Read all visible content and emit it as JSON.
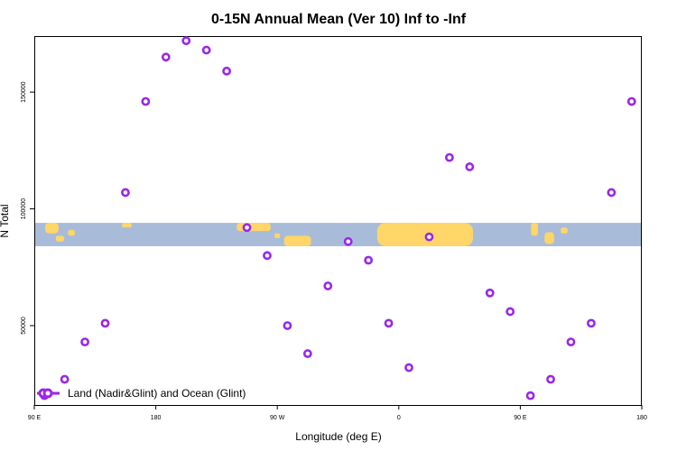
{
  "chart_data": {
    "type": "scatter",
    "title": "0-15N Annual Mean (Ver 10)   Inf to -Inf",
    "xlabel": "Longitude (deg E)",
    "ylabel": "N Total",
    "x_ticks": [
      {
        "value": 0,
        "label": "90 E"
      },
      {
        "value": 90,
        "label": "180"
      },
      {
        "value": 180,
        "label": "90 W"
      },
      {
        "value": 270,
        "label": "0"
      },
      {
        "value": 360,
        "label": "90 E"
      },
      {
        "value": 450,
        "label": "180"
      }
    ],
    "y_ticks": [
      {
        "value": 50000,
        "label": "50000"
      },
      {
        "value": 100000,
        "label": "100000"
      },
      {
        "value": 150000,
        "label": "150000"
      }
    ],
    "xlim": [
      0,
      450
    ],
    "ylim": [
      16000,
      174000
    ],
    "map_band": {
      "y_top": 94000,
      "y_bottom": 84000,
      "ocean_color": "#a8bcd9",
      "land_color": "#ffd667"
    },
    "legend": {
      "label": "Land (Nadir&Glint) and Ocean (Glint)",
      "position": "bottom-left"
    },
    "series": [
      {
        "name": "Land (Nadir&Glint) and Ocean (Glint)",
        "color": "#9a27e6",
        "points": [
          [
            7.5,
            20000
          ],
          [
            22.5,
            27000
          ],
          [
            37.5,
            43000
          ],
          [
            52.5,
            51000
          ],
          [
            67.5,
            107000
          ],
          [
            82.5,
            146000
          ],
          [
            97.5,
            165000
          ],
          [
            112.5,
            172000
          ],
          [
            127.5,
            168000
          ],
          [
            142.5,
            159000
          ],
          [
            157.5,
            92000
          ],
          [
            172.5,
            80000
          ],
          [
            187.5,
            50000
          ],
          [
            202.5,
            38000
          ],
          [
            217.5,
            67000
          ],
          [
            232.5,
            86000
          ],
          [
            247.5,
            78000
          ],
          [
            262.5,
            51000
          ],
          [
            277.5,
            32000
          ],
          [
            292.5,
            88000
          ],
          [
            307.5,
            122000
          ],
          [
            322.5,
            118000
          ],
          [
            337.5,
            64000
          ],
          [
            352.5,
            56000
          ],
          [
            367.5,
            20000
          ],
          [
            382.5,
            27000
          ],
          [
            397.5,
            43000
          ],
          [
            412.5,
            51000
          ],
          [
            427.5,
            107000
          ],
          [
            442.5,
            146000
          ]
        ]
      }
    ]
  }
}
